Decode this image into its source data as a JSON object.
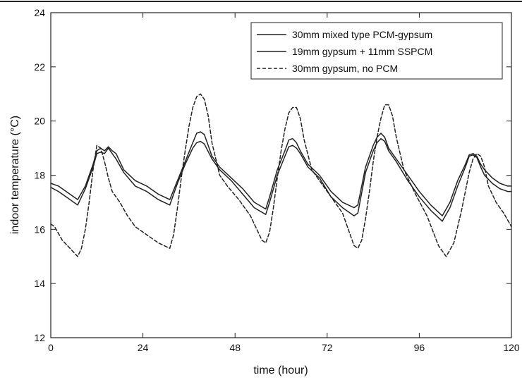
{
  "chart_data": {
    "type": "line",
    "xlabel": "time (hour)",
    "ylabel": "indoor temperature (°C)",
    "xlim": [
      0,
      120
    ],
    "ylim": [
      12,
      24
    ],
    "xticks": [
      0,
      24,
      48,
      72,
      96,
      120
    ],
    "yticks": [
      12,
      14,
      16,
      18,
      20,
      22,
      24
    ],
    "grid": false,
    "legend_position": "top-right",
    "series": [
      {
        "name": "30mm mixed type PCM-gypsum",
        "style": "solid",
        "color": "#222222",
        "x": [
          0,
          2,
          4,
          7,
          9,
          11,
          12,
          13,
          14,
          15,
          16,
          17,
          19,
          22,
          25,
          28,
          31,
          33,
          35,
          37,
          38,
          39,
          40,
          42,
          44,
          47,
          50,
          53,
          56,
          57,
          59,
          61,
          62,
          63,
          64,
          65,
          67,
          70,
          73,
          76,
          79,
          80,
          82,
          84,
          85,
          86,
          87,
          88,
          90,
          93,
          96,
          99,
          102,
          104,
          106,
          108,
          109,
          110,
          111,
          112,
          113,
          115,
          117,
          119,
          120
        ],
        "y": [
          17.7,
          17.6,
          17.4,
          17.1,
          17.6,
          18.4,
          18.9,
          19.0,
          18.9,
          19.05,
          18.9,
          18.8,
          18.2,
          17.8,
          17.6,
          17.3,
          17.1,
          17.8,
          18.5,
          19.2,
          19.55,
          19.6,
          19.5,
          18.7,
          18.3,
          17.9,
          17.5,
          17.0,
          16.75,
          17.2,
          18.2,
          18.9,
          19.3,
          19.35,
          19.2,
          18.9,
          18.4,
          18.0,
          17.4,
          17.0,
          16.8,
          16.9,
          18.3,
          19.1,
          19.4,
          19.55,
          19.4,
          19.0,
          18.6,
          18.0,
          17.4,
          16.9,
          16.5,
          17.0,
          17.8,
          18.4,
          18.75,
          18.8,
          18.7,
          18.4,
          18.2,
          17.9,
          17.7,
          17.6,
          17.6
        ]
      },
      {
        "name": "19mm gypsum + 11mm SSPCM",
        "style": "solid",
        "color": "#222222",
        "x": [
          0,
          2,
          4,
          7,
          9,
          11,
          12,
          13,
          14,
          15,
          16,
          17,
          19,
          22,
          25,
          28,
          31,
          33,
          35,
          37,
          38,
          39,
          40,
          42,
          44,
          47,
          50,
          53,
          56,
          57,
          59,
          61,
          62,
          63,
          64,
          65,
          67,
          70,
          73,
          76,
          79,
          80,
          82,
          84,
          85,
          86,
          87,
          88,
          90,
          93,
          96,
          99,
          102,
          104,
          106,
          108,
          109,
          110,
          111,
          112,
          113,
          115,
          117,
          119,
          120
        ],
        "y": [
          17.55,
          17.4,
          17.2,
          16.9,
          17.5,
          18.3,
          18.8,
          18.85,
          18.8,
          19.0,
          18.8,
          18.6,
          18.1,
          17.6,
          17.4,
          17.1,
          16.9,
          17.7,
          18.4,
          19.0,
          19.2,
          19.25,
          19.15,
          18.6,
          18.2,
          17.8,
          17.3,
          16.8,
          16.55,
          17.0,
          18.0,
          18.7,
          19.05,
          19.1,
          19.0,
          18.8,
          18.3,
          17.9,
          17.2,
          16.8,
          16.5,
          16.6,
          18.1,
          18.9,
          19.2,
          19.35,
          19.25,
          18.9,
          18.5,
          17.8,
          17.2,
          16.7,
          16.3,
          16.8,
          17.6,
          18.3,
          18.7,
          18.75,
          18.65,
          18.3,
          18.0,
          17.7,
          17.5,
          17.4,
          17.4
        ]
      },
      {
        "name": "30mm gypsum, no PCM",
        "style": "dashed",
        "color": "#222222",
        "x": [
          0,
          1,
          3,
          5,
          7,
          8,
          9,
          10,
          11,
          12,
          13,
          14,
          15,
          16,
          18,
          20,
          22,
          25,
          28,
          31,
          32,
          33,
          34,
          35,
          36,
          37,
          38,
          39,
          40,
          41,
          42,
          44,
          46,
          49,
          52,
          55,
          56,
          57,
          58,
          59,
          60,
          61,
          62,
          63,
          64,
          65,
          66,
          68,
          70,
          73,
          76,
          79,
          80,
          81,
          82,
          83,
          84,
          85,
          86,
          87,
          88,
          89,
          90,
          92,
          95,
          98,
          101,
          103,
          105,
          107,
          109,
          110,
          111,
          112,
          113,
          114,
          116,
          118,
          120
        ],
        "y": [
          16.2,
          16.1,
          15.6,
          15.3,
          15.0,
          15.3,
          16.0,
          17.0,
          18.2,
          19.1,
          19.0,
          18.5,
          17.9,
          17.4,
          17.0,
          16.5,
          16.1,
          15.8,
          15.5,
          15.3,
          15.8,
          16.8,
          17.9,
          18.9,
          19.8,
          20.5,
          20.9,
          21.0,
          20.8,
          20.2,
          19.2,
          18.0,
          17.6,
          17.1,
          16.5,
          15.6,
          15.5,
          15.9,
          16.8,
          17.9,
          18.9,
          19.7,
          20.3,
          20.5,
          20.5,
          20.1,
          19.3,
          18.2,
          17.8,
          17.2,
          16.6,
          15.4,
          15.3,
          15.6,
          16.4,
          17.4,
          18.5,
          19.4,
          20.1,
          20.6,
          20.6,
          20.2,
          19.4,
          18.2,
          17.3,
          16.5,
          15.4,
          15.0,
          15.5,
          16.7,
          18.1,
          18.6,
          18.8,
          18.7,
          18.3,
          17.6,
          17.0,
          16.6,
          16.1
        ]
      }
    ]
  }
}
